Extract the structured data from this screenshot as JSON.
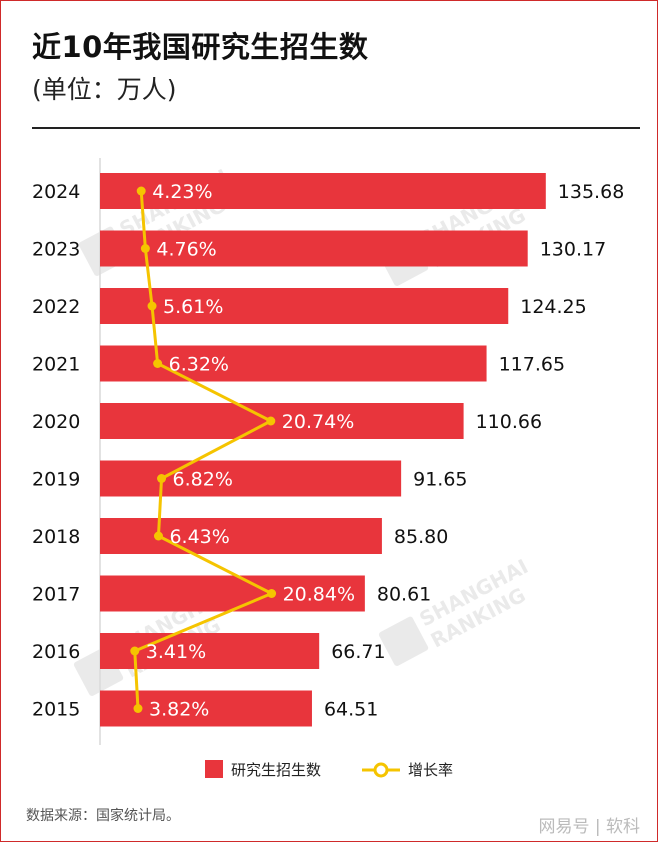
{
  "title": "近10年我国研究生招生数",
  "subtitle": "(单位：万人)",
  "source": "数据来源：国家统计局。",
  "brand": "网易号 | 软科",
  "watermark_text": [
    "SHANGHAI",
    "RANKING"
  ],
  "colors": {
    "bar": "#e8353c",
    "line": "#f5c400",
    "axis": "#d9d9d9"
  },
  "chart_data": {
    "type": "bar",
    "orientation": "horizontal",
    "categories": [
      "2024",
      "2023",
      "2022",
      "2021",
      "2020",
      "2019",
      "2018",
      "2017",
      "2016",
      "2015"
    ],
    "series": [
      {
        "name": "研究生招生数",
        "kind": "bar",
        "values": [
          135.68,
          130.17,
          124.25,
          117.65,
          110.66,
          91.65,
          85.8,
          80.61,
          66.71,
          64.51
        ],
        "labels": [
          "135.68",
          "130.17",
          "124.25",
          "117.65",
          "110.66",
          "91.65",
          "85.80",
          "80.61",
          "66.71",
          "64.51"
        ]
      },
      {
        "name": "增长率",
        "kind": "line",
        "values": [
          4.23,
          4.76,
          5.61,
          6.32,
          20.74,
          6.82,
          6.43,
          20.84,
          3.41,
          3.82
        ],
        "labels": [
          "4.23%",
          "4.76%",
          "5.61%",
          "6.32%",
          "20.74%",
          "6.82%",
          "6.43%",
          "20.84%",
          "3.41%",
          "3.82%"
        ]
      }
    ],
    "xlim": [
      0,
      140
    ],
    "legend": [
      "研究生招生数",
      "增长率"
    ],
    "legend_position": "bottom-center"
  }
}
